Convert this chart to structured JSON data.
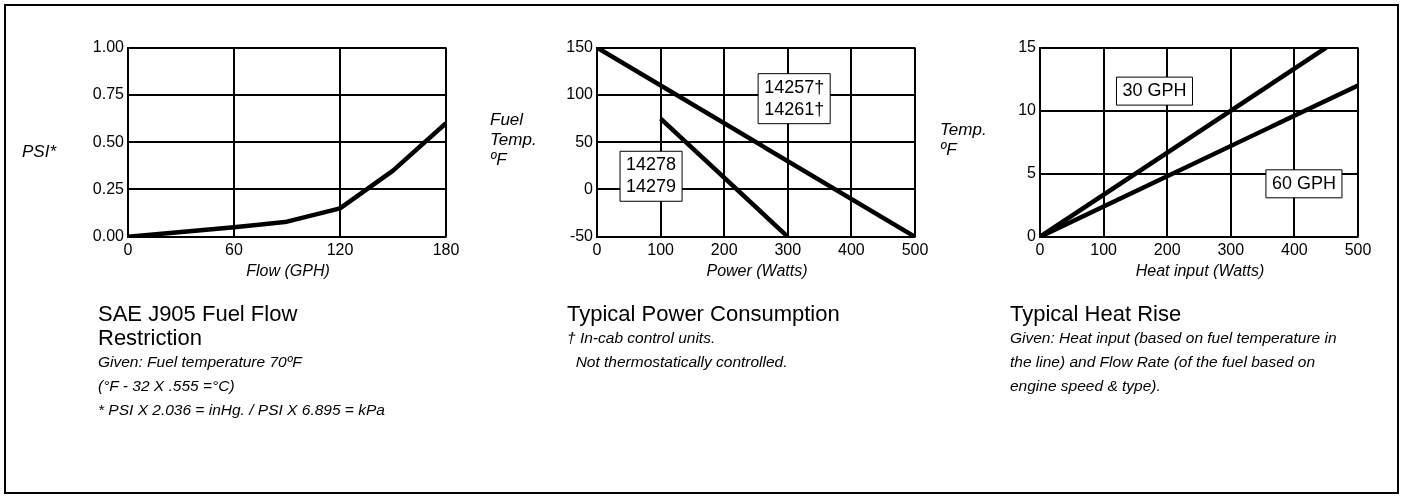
{
  "chart_data": [
    {
      "type": "line",
      "title": "SAE J905 Fuel Flow Restriction",
      "xlabel": "Flow (GPH)",
      "ylabel": "PSI*",
      "xlim": [
        0,
        180
      ],
      "xticks": [
        0,
        60,
        120,
        180
      ],
      "ylim": [
        0,
        1
      ],
      "yticks": [
        {
          "value": 0,
          "label": "0.00"
        },
        {
          "value": 0.25,
          "label": "0.25"
        },
        {
          "value": 0.5,
          "label": "0.50"
        },
        {
          "value": 0.75,
          "label": "0.75"
        },
        {
          "value": 1,
          "label": "1.00"
        }
      ],
      "grid": true,
      "legend": false,
      "marker": "none",
      "line_style": "solid",
      "series": [
        {
          "color": "#000000",
          "x": [
            0,
            60,
            90,
            120,
            150,
            180
          ],
          "values": [
            0,
            0.05,
            0.08,
            0.15,
            0.35,
            0.6
          ]
        }
      ],
      "annotations": [
        "Given: Fuel temperature 70ºF",
        "(°F - 32 X .555 =°C)",
        "* PSI X 2.036 = inHg. / PSI X 6.895 = kPa"
      ]
    },
    {
      "type": "line",
      "title": "Typical Power Consumption",
      "xlabel": "Power (Watts)",
      "ylabel": "Fuel\nTemp.\nºF",
      "xlim": [
        0,
        500
      ],
      "xticks": [
        0,
        100,
        200,
        300,
        400,
        500
      ],
      "ylim": [
        -50,
        150
      ],
      "yticks": [
        -50,
        0,
        50,
        100,
        150
      ],
      "grid": true,
      "legend": false,
      "marker": "none",
      "line_style": "solid",
      "series": [
        {
          "name": "14257†\n14261†",
          "color": "#000000",
          "x": [
            0,
            500
          ],
          "values": [
            150,
            -50
          ]
        },
        {
          "name": "14278\n14279",
          "color": "#000000",
          "x": [
            100,
            300
          ],
          "values": [
            75,
            -50
          ]
        }
      ],
      "annotations": [
        "† In-cab control units.\n  Not thermostatically controlled."
      ]
    },
    {
      "type": "line",
      "title": "Typical Heat Rise",
      "xlabel": "Heat input (Watts)",
      "ylabel": "Temp.\nºF",
      "xlim": [
        0,
        500
      ],
      "xticks": [
        0,
        100,
        200,
        300,
        400,
        500
      ],
      "ylim": [
        0,
        15
      ],
      "yticks": [
        0,
        5,
        10,
        15
      ],
      "grid": true,
      "legend": false,
      "marker": "none",
      "line_style": "solid",
      "series": [
        {
          "name": "30 GPH",
          "color": "#000000",
          "x": [
            0,
            450
          ],
          "values": [
            0,
            15
          ]
        },
        {
          "name": "60 GPH",
          "color": "#000000",
          "x": [
            0,
            500
          ],
          "values": [
            0,
            12
          ]
        }
      ],
      "annotations": [
        "Given: Heat input (based on fuel temperature in the line) and Flow Rate (of the fuel based on engine speed & type)."
      ]
    }
  ]
}
